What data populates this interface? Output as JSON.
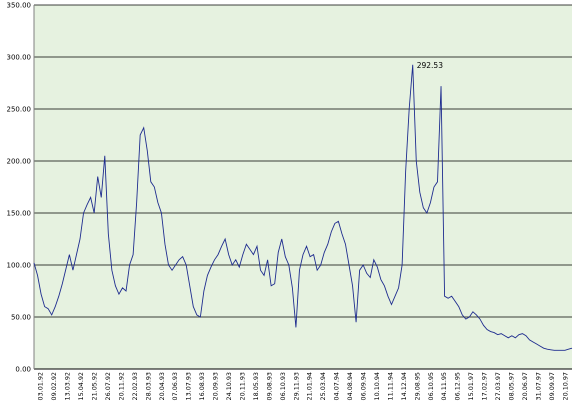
{
  "chart_data": {
    "type": "line",
    "title": "",
    "xlabel": "",
    "ylabel": "",
    "ylim": [
      0,
      350
    ],
    "yticks": [
      "0.00",
      "50.00",
      "100.00",
      "150.00",
      "200.00",
      "250.00",
      "300.00",
      "350.00"
    ],
    "grid": "horizontal",
    "legend": "none",
    "colors": {
      "plot_background": "#e6f2e0",
      "series_line": "#1f2d8f",
      "gridline": "#000000"
    },
    "x_ticks": [
      "03.01.92",
      "09.02.92",
      "13.03.92",
      "15.04.92",
      "21.05.92",
      "26.07.92",
      "20.11.92",
      "22.02.93",
      "28.03.93",
      "20.04.93",
      "07.06.93",
      "13.07.93",
      "16.08.93",
      "20.09.93",
      "24.10.93",
      "20.11.93",
      "18.05.93",
      "09.08.93",
      "06.10.93",
      "29.11.93",
      "21.01.94",
      "25.03.94",
      "04.07.94",
      "04.08.94",
      "06.09.94",
      "10.10.94",
      "11.11.94",
      "14.12.94",
      "29.08.95",
      "06.10.95",
      "04.11.95",
      "06.12.95",
      "15.01.97",
      "17.02.97",
      "27.03.97",
      "08.05.97",
      "20.06.97",
      "31.07.97",
      "09.09.97",
      "20.10.97"
    ],
    "series": [
      {
        "values": [
          102,
          90,
          72,
          60,
          58,
          52,
          60,
          70,
          82,
          96,
          110,
          95,
          110,
          125,
          150,
          158,
          165,
          150,
          185,
          165,
          205,
          130,
          95,
          80,
          72,
          78,
          75,
          100,
          110,
          160,
          225,
          232,
          210,
          180,
          175,
          160,
          150,
          120,
          100,
          95,
          100,
          105,
          108,
          100,
          80,
          60,
          52,
          50,
          75,
          90,
          98,
          105,
          110,
          118,
          125,
          110,
          100,
          105,
          98,
          110,
          120,
          115,
          110,
          118,
          95,
          90,
          105,
          80,
          82,
          112,
          125,
          108,
          100,
          78,
          40,
          95,
          110,
          118,
          108,
          110,
          95,
          100,
          112,
          120,
          132,
          140,
          142,
          130,
          120,
          100,
          80,
          45,
          95,
          100,
          92,
          88,
          105,
          98,
          86,
          80,
          70,
          62,
          70,
          78,
          100,
          190,
          250,
          292.53,
          200,
          170,
          155,
          150,
          160,
          175,
          180,
          272,
          70,
          68,
          70,
          65,
          60,
          52,
          48,
          50,
          55,
          52,
          48,
          42,
          38,
          36,
          35,
          33,
          34,
          32,
          30,
          32,
          30,
          33,
          34,
          32,
          28,
          26,
          24,
          22,
          20,
          19,
          18.5,
          18,
          18,
          18,
          18,
          19,
          20
        ]
      }
    ],
    "annotations": [
      {
        "text": "292.53",
        "index": 107,
        "y": 292.53
      }
    ]
  }
}
